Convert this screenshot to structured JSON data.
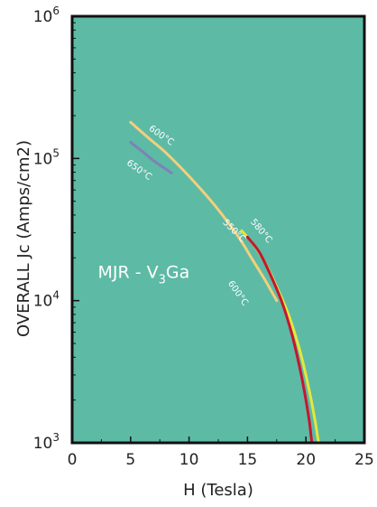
{
  "chart_data": {
    "type": "line",
    "xlabel": "H (Tesla)",
    "ylabel": "OVERALL Jc (Amps/cm2)",
    "xlim": [
      0,
      25
    ],
    "ylim": [
      1000,
      1000000
    ],
    "yscale": "log",
    "xticks": [
      0,
      5,
      10,
      15,
      20,
      25
    ],
    "yticks": [
      {
        "value": 1000,
        "base": "10",
        "exp": "3"
      },
      {
        "value": 10000,
        "base": "10",
        "exp": "4"
      },
      {
        "value": 100000,
        "base": "10",
        "exp": "5"
      },
      {
        "value": 1000000,
        "base": "10",
        "exp": "6"
      }
    ],
    "background_color": "#5dbaa5",
    "annotation": {
      "prefix": "MJR - V",
      "sub": "3",
      "suffix": "Ga"
    },
    "series": [
      {
        "name": "600°C",
        "color": "#f3cf7c",
        "x": [
          5.0,
          6.5,
          8.0,
          10.0,
          12.0,
          13.5,
          14.5,
          15.5,
          16.5,
          17.5
        ],
        "y": [
          180000,
          140000,
          110000,
          75000,
          49000,
          34000,
          26000,
          19000,
          14000,
          10000
        ]
      },
      {
        "name": "650°C",
        "color": "#7d82b8",
        "x": [
          5.0,
          6.0,
          7.0,
          8.5
        ],
        "y": [
          130000,
          112000,
          96000,
          79000
        ]
      },
      {
        "name": "580°C",
        "color": "#e5e83a",
        "x": [
          14.5,
          15.5,
          16.5,
          17.5,
          18.5,
          19.5,
          20.3,
          20.8,
          21.0,
          21.1
        ],
        "y": [
          31000,
          25000,
          18500,
          12500,
          8000,
          4400,
          2300,
          1400,
          1100,
          1000
        ]
      },
      {
        "name": "550°C",
        "color": "#c8152f",
        "x": [
          15.0,
          16.0,
          17.0,
          18.0,
          18.8,
          19.5,
          20.0,
          20.3,
          20.5
        ],
        "y": [
          28000,
          22000,
          15000,
          9500,
          5800,
          3300,
          2000,
          1400,
          1000
        ]
      }
    ],
    "curve_labels": [
      {
        "text": "600°C",
        "color_of": 0,
        "x": 7.5,
        "y": 140000,
        "angle": 35
      },
      {
        "text": "650°C",
        "color_of": 1,
        "x": 5.6,
        "y": 80000,
        "angle": 35
      },
      {
        "text": "550°C",
        "color_of": 3,
        "x": 13.7,
        "y": 30000,
        "angle": 45
      },
      {
        "text": "580°C",
        "color_of": 2,
        "x": 16.0,
        "y": 30000,
        "angle": 50
      },
      {
        "text": "600°C",
        "color_of": 0,
        "x": 14.0,
        "y": 11000,
        "angle": 55
      }
    ]
  }
}
